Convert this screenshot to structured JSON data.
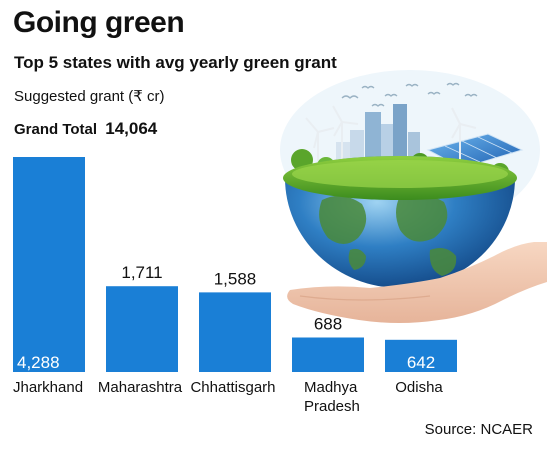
{
  "header": {
    "title": "Going green",
    "subtitle": "Top 5 states with avg yearly green grant",
    "unit_label": "Suggested grant (₹ cr)",
    "total_label": "Grand Total",
    "total_value": "14,064"
  },
  "source": "Source: NCAER",
  "colors": {
    "bar": "#1a7fd6",
    "label_inside": "#ffffff",
    "label_outside": "#111111"
  },
  "illustration": {
    "icon": "earth-globe-on-hand-icon"
  },
  "chart_data": {
    "type": "bar",
    "categories": [
      "Jharkhand",
      "Maharashtra",
      "Chhattisgarh",
      "Madhya Pradesh",
      "Odisha"
    ],
    "category_lines": [
      [
        "Jharkhand"
      ],
      [
        "Maharashtra"
      ],
      [
        "Chhattisgarh"
      ],
      [
        "Madhya",
        "Pradesh"
      ],
      [
        "Odisha"
      ]
    ],
    "values": [
      4288,
      1711,
      1588,
      688,
      642
    ],
    "value_labels": [
      "4,288",
      "1,711",
      "1,588",
      "688",
      "642"
    ],
    "ylim": [
      0,
      4288
    ],
    "grid": false,
    "legend": "none"
  }
}
